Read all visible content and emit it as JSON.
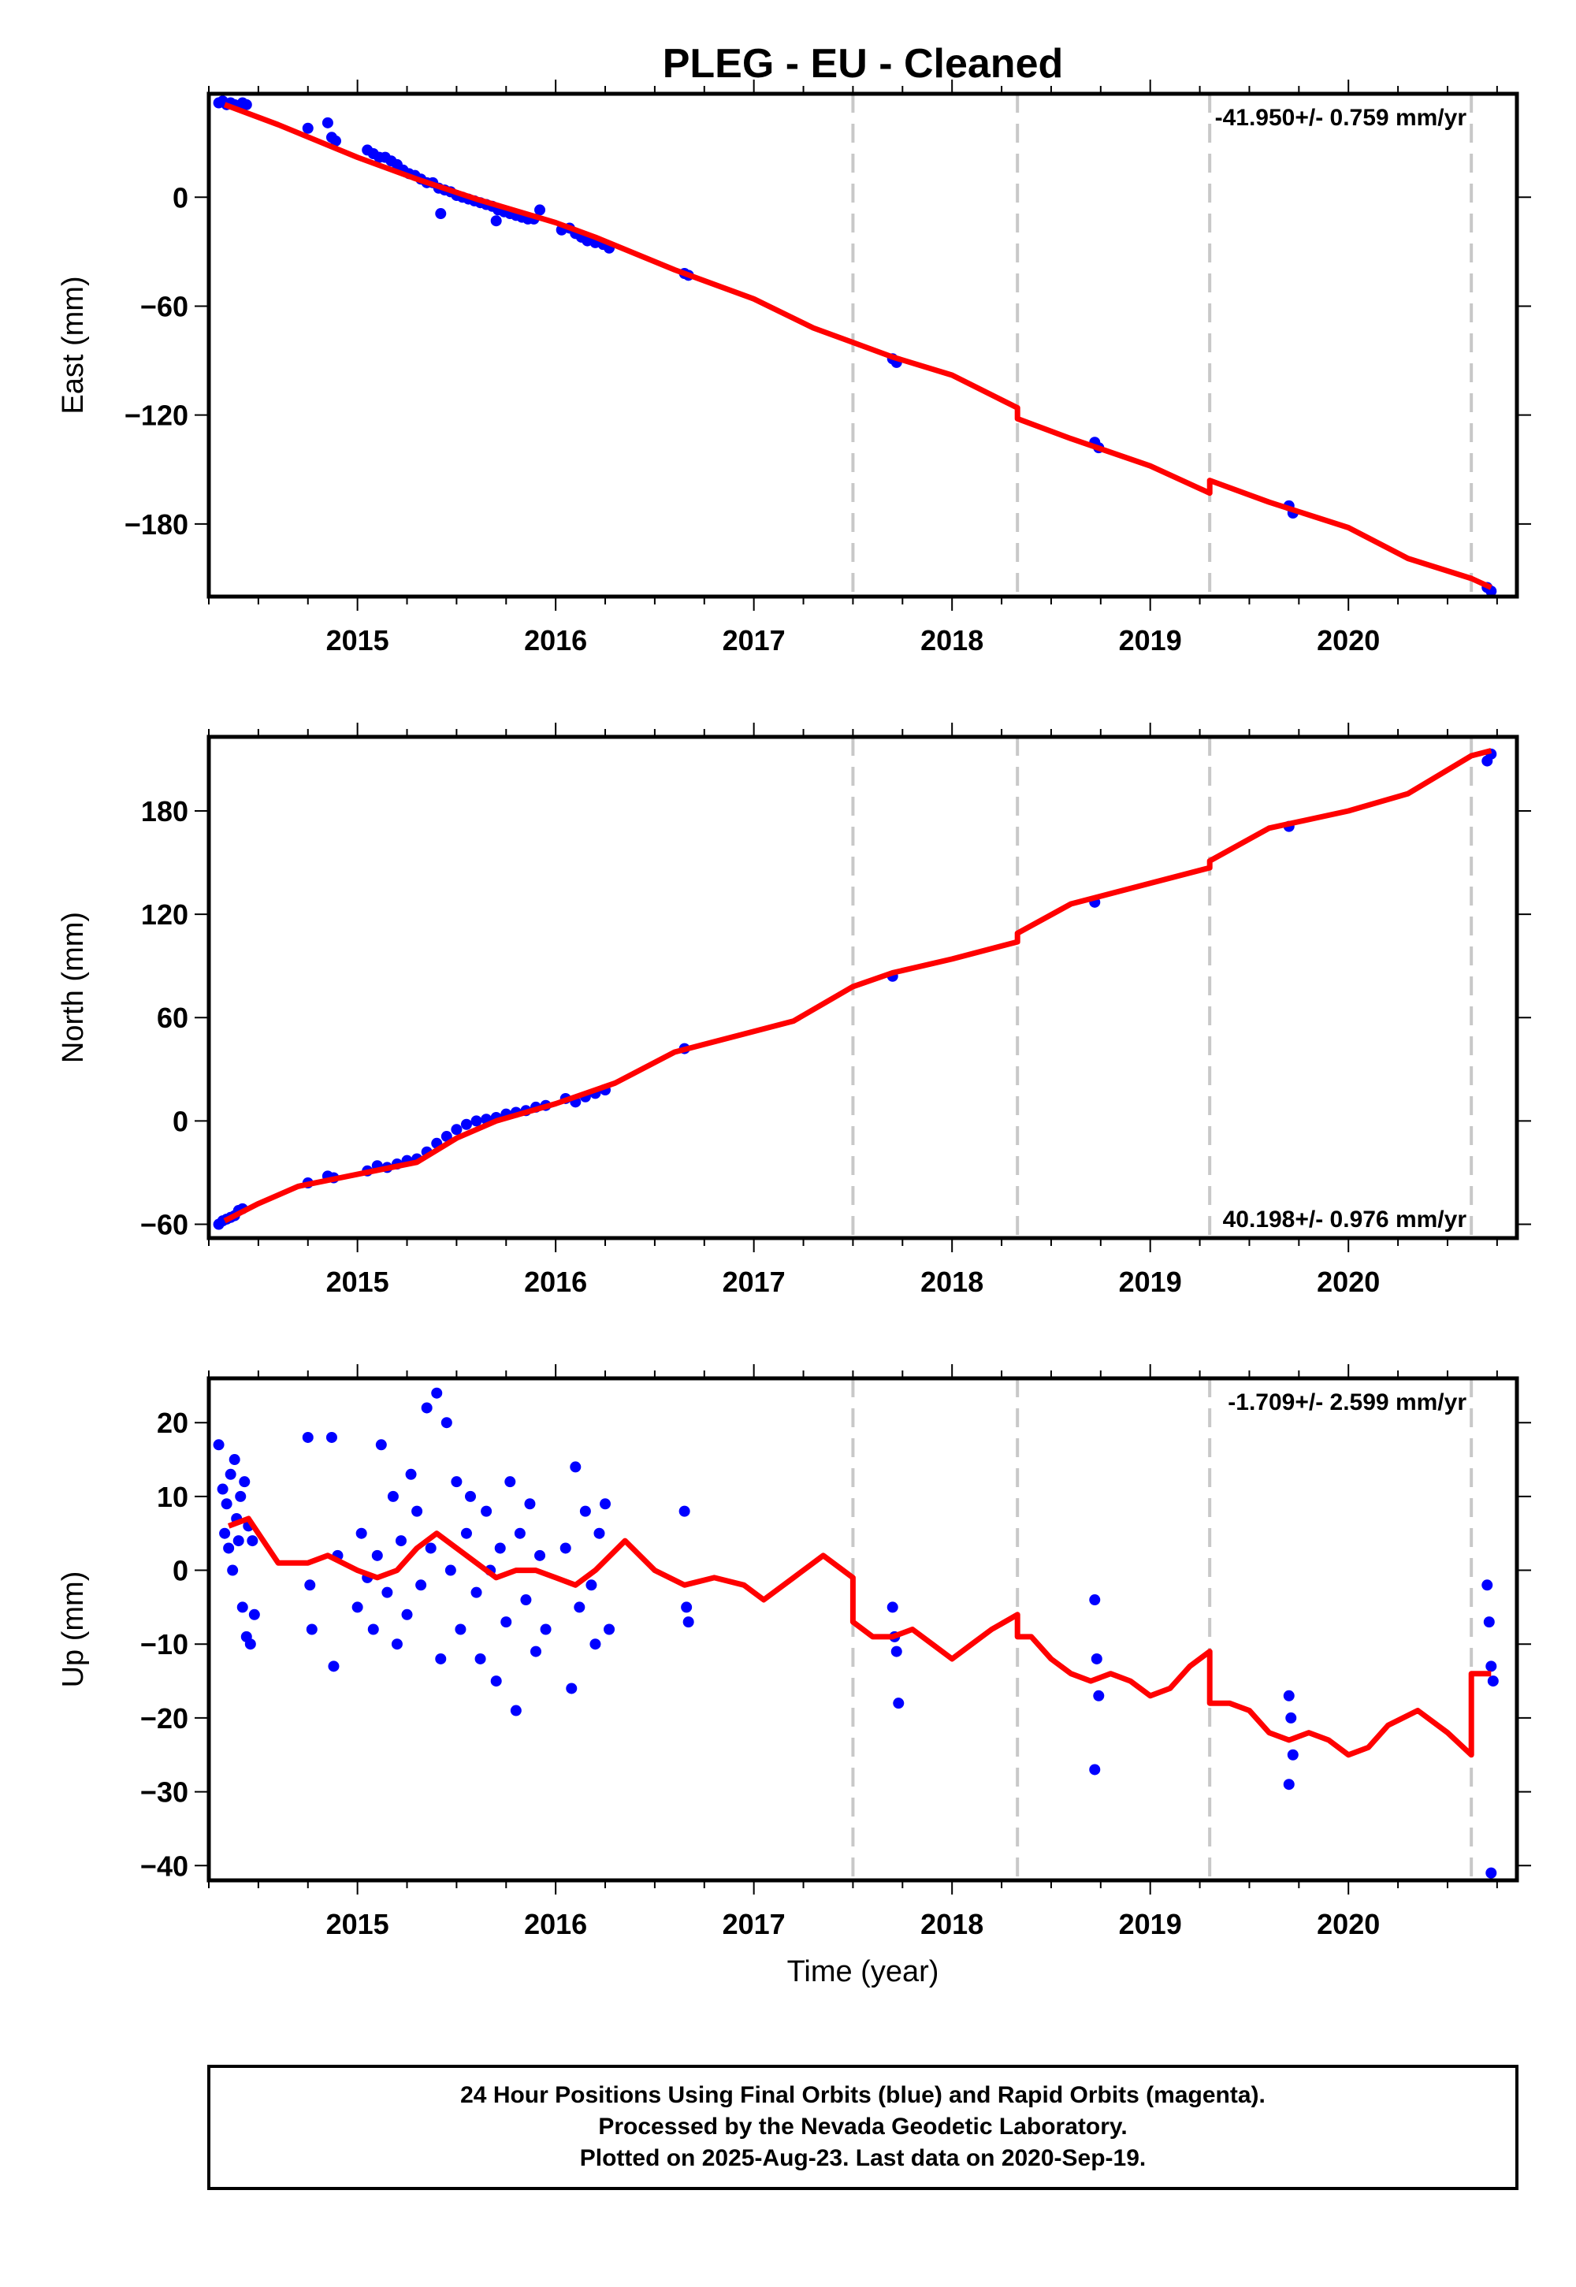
{
  "title": "PLEG  - EU - Cleaned",
  "xlabel": "Time (year)",
  "colors": {
    "points": "#0000ff",
    "fit": "#ff0000",
    "offsets": "#c8c8c8",
    "frame": "#000000"
  },
  "footer": {
    "line1": "24 Hour Positions Using Final Orbits (blue) and Rapid Orbits (magenta).",
    "line2": "Processed by the Nevada Geodetic Laboratory.",
    "line3": "Plotted on 2025-Aug-23. Last data on 2020-Sep-19."
  },
  "chart_data": [
    {
      "type": "scatter",
      "component": "East",
      "ylabel": "East (mm)",
      "rate_label": "-41.950+/- 0.759 mm/yr",
      "rate_position": "top-right",
      "xlim": [
        2014.25,
        2020.85
      ],
      "ylim": [
        -220,
        57
      ],
      "xticks": [
        2015,
        2016,
        2017,
        2018,
        2019,
        2020
      ],
      "yticks": [
        0,
        -60,
        -120,
        -180
      ],
      "offsets": [
        2017.5,
        2018.33,
        2019.3,
        2020.62
      ],
      "fit_line": [
        [
          2014.33,
          51
        ],
        [
          2014.6,
          40
        ],
        [
          2015.0,
          22
        ],
        [
          2015.3,
          10
        ],
        [
          2015.6,
          -1
        ],
        [
          2016.0,
          -14
        ],
        [
          2016.2,
          -22
        ],
        [
          2016.6,
          -40
        ],
        [
          2017.0,
          -56
        ],
        [
          2017.3,
          -72
        ],
        [
          2017.5,
          -80
        ],
        [
          2017.7,
          -88
        ],
        [
          2018.0,
          -98
        ],
        [
          2018.33,
          -116
        ],
        [
          2018.33,
          -122
        ],
        [
          2018.6,
          -133
        ],
        [
          2019.0,
          -148
        ],
        [
          2019.3,
          -163
        ],
        [
          2019.3,
          -156
        ],
        [
          2019.6,
          -168
        ],
        [
          2020.0,
          -182
        ],
        [
          2020.3,
          -199
        ],
        [
          2020.62,
          -210
        ],
        [
          2020.72,
          -215
        ]
      ],
      "points": [
        [
          2014.3,
          52
        ],
        [
          2014.32,
          53
        ],
        [
          2014.34,
          51
        ],
        [
          2014.36,
          52
        ],
        [
          2014.38,
          51
        ],
        [
          2014.4,
          50
        ],
        [
          2014.42,
          52
        ],
        [
          2014.44,
          51
        ],
        [
          2014.75,
          38
        ],
        [
          2014.85,
          41
        ],
        [
          2014.87,
          33
        ],
        [
          2014.89,
          31
        ],
        [
          2015.05,
          26
        ],
        [
          2015.08,
          24
        ],
        [
          2015.11,
          22
        ],
        [
          2015.14,
          22
        ],
        [
          2015.17,
          20
        ],
        [
          2015.2,
          18
        ],
        [
          2015.23,
          15
        ],
        [
          2015.26,
          13
        ],
        [
          2015.29,
          12
        ],
        [
          2015.32,
          10
        ],
        [
          2015.35,
          8
        ],
        [
          2015.38,
          8
        ],
        [
          2015.41,
          5
        ],
        [
          2015.44,
          4
        ],
        [
          2015.47,
          3
        ],
        [
          2015.5,
          1
        ],
        [
          2015.53,
          0
        ],
        [
          2015.56,
          -1
        ],
        [
          2015.59,
          -2
        ],
        [
          2015.62,
          -3
        ],
        [
          2015.65,
          -4
        ],
        [
          2015.68,
          -5
        ],
        [
          2015.71,
          -7
        ],
        [
          2015.74,
          -8
        ],
        [
          2015.77,
          -9
        ],
        [
          2015.8,
          -10
        ],
        [
          2015.83,
          -11
        ],
        [
          2015.86,
          -12
        ],
        [
          2015.89,
          -12
        ],
        [
          2015.92,
          -7
        ],
        [
          2015.42,
          -9
        ],
        [
          2015.7,
          -13
        ],
        [
          2016.03,
          -18
        ],
        [
          2016.07,
          -17
        ],
        [
          2016.1,
          -20
        ],
        [
          2016.13,
          -22
        ],
        [
          2016.16,
          -24
        ],
        [
          2016.2,
          -25
        ],
        [
          2016.24,
          -26
        ],
        [
          2016.27,
          -28
        ],
        [
          2016.65,
          -42
        ],
        [
          2016.67,
          -43
        ],
        [
          2017.7,
          -89
        ],
        [
          2017.72,
          -91
        ],
        [
          2018.72,
          -135
        ],
        [
          2018.74,
          -138
        ],
        [
          2019.7,
          -170
        ],
        [
          2019.72,
          -174
        ],
        [
          2020.7,
          -215
        ],
        [
          2020.72,
          -217
        ]
      ]
    },
    {
      "type": "scatter",
      "component": "North",
      "ylabel": "North (mm)",
      "rate_label": "40.198+/- 0.976 mm/yr",
      "rate_position": "bottom-right",
      "xlim": [
        2014.25,
        2020.85
      ],
      "ylim": [
        -68,
        223
      ],
      "xticks": [
        2015,
        2016,
        2017,
        2018,
        2019,
        2020
      ],
      "yticks": [
        -60,
        0,
        60,
        120,
        180
      ],
      "offsets": [
        2017.5,
        2018.33,
        2019.3,
        2020.62
      ],
      "fit_line": [
        [
          2014.33,
          -58
        ],
        [
          2014.5,
          -48
        ],
        [
          2014.7,
          -38
        ],
        [
          2015.0,
          -31
        ],
        [
          2015.3,
          -24
        ],
        [
          2015.5,
          -10
        ],
        [
          2015.7,
          0
        ],
        [
          2016.0,
          10
        ],
        [
          2016.3,
          22
        ],
        [
          2016.6,
          40
        ],
        [
          2017.0,
          52
        ],
        [
          2017.2,
          58
        ],
        [
          2017.5,
          78
        ],
        [
          2017.7,
          86
        ],
        [
          2018.0,
          94
        ],
        [
          2018.33,
          104
        ],
        [
          2018.33,
          109
        ],
        [
          2018.6,
          126
        ],
        [
          2019.0,
          138
        ],
        [
          2019.3,
          147
        ],
        [
          2019.3,
          151
        ],
        [
          2019.6,
          170
        ],
        [
          2020.0,
          180
        ],
        [
          2020.3,
          190
        ],
        [
          2020.62,
          212
        ],
        [
          2020.72,
          215
        ]
      ],
      "points": [
        [
          2014.3,
          -60
        ],
        [
          2014.32,
          -58
        ],
        [
          2014.34,
          -57
        ],
        [
          2014.36,
          -56
        ],
        [
          2014.38,
          -55
        ],
        [
          2014.4,
          -52
        ],
        [
          2014.42,
          -51
        ],
        [
          2014.75,
          -36
        ],
        [
          2014.85,
          -32
        ],
        [
          2014.88,
          -33
        ],
        [
          2015.05,
          -29
        ],
        [
          2015.1,
          -26
        ],
        [
          2015.15,
          -27
        ],
        [
          2015.2,
          -25
        ],
        [
          2015.25,
          -23
        ],
        [
          2015.3,
          -22
        ],
        [
          2015.35,
          -18
        ],
        [
          2015.4,
          -13
        ],
        [
          2015.45,
          -9
        ],
        [
          2015.5,
          -5
        ],
        [
          2015.55,
          -2
        ],
        [
          2015.6,
          0
        ],
        [
          2015.65,
          1
        ],
        [
          2015.7,
          2
        ],
        [
          2015.75,
          4
        ],
        [
          2015.8,
          5
        ],
        [
          2015.85,
          6
        ],
        [
          2015.9,
          8
        ],
        [
          2015.95,
          9
        ],
        [
          2016.05,
          13
        ],
        [
          2016.1,
          11
        ],
        [
          2016.15,
          14
        ],
        [
          2016.2,
          16
        ],
        [
          2016.25,
          18
        ],
        [
          2016.65,
          42
        ],
        [
          2017.7,
          84
        ],
        [
          2018.72,
          127
        ],
        [
          2019.7,
          171
        ],
        [
          2020.7,
          209
        ],
        [
          2020.72,
          213
        ]
      ]
    },
    {
      "type": "scatter",
      "component": "Up",
      "ylabel": "Up (mm)",
      "rate_label": "-1.709+/- 2.599 mm/yr",
      "rate_position": "top-right",
      "xlim": [
        2014.25,
        2020.85
      ],
      "ylim": [
        -42,
        26
      ],
      "xticks": [
        2015,
        2016,
        2017,
        2018,
        2019,
        2020
      ],
      "yticks": [
        20,
        10,
        0,
        -10,
        -20,
        -30,
        -40
      ],
      "offsets": [
        2017.5,
        2018.33,
        2019.3,
        2020.62
      ],
      "fit_line": [
        [
          2014.35,
          6
        ],
        [
          2014.45,
          7
        ],
        [
          2014.6,
          1
        ],
        [
          2014.75,
          1
        ],
        [
          2014.85,
          2
        ],
        [
          2015.0,
          0
        ],
        [
          2015.1,
          -1
        ],
        [
          2015.2,
          0
        ],
        [
          2015.3,
          3
        ],
        [
          2015.4,
          5
        ],
        [
          2015.55,
          2
        ],
        [
          2015.7,
          -1
        ],
        [
          2015.8,
          0
        ],
        [
          2015.9,
          0
        ],
        [
          2016.0,
          -1
        ],
        [
          2016.1,
          -2
        ],
        [
          2016.2,
          0
        ],
        [
          2016.35,
          4
        ],
        [
          2016.5,
          0
        ],
        [
          2016.65,
          -2
        ],
        [
          2016.8,
          -1
        ],
        [
          2016.95,
          -2
        ],
        [
          2017.05,
          -4
        ],
        [
          2017.2,
          -1
        ],
        [
          2017.35,
          2
        ],
        [
          2017.5,
          -1
        ],
        [
          2017.5,
          -7
        ],
        [
          2017.6,
          -9
        ],
        [
          2017.7,
          -9
        ],
        [
          2017.8,
          -8
        ],
        [
          2017.9,
          -10
        ],
        [
          2018.0,
          -12
        ],
        [
          2018.1,
          -10
        ],
        [
          2018.2,
          -8
        ],
        [
          2018.33,
          -6
        ],
        [
          2018.33,
          -9
        ],
        [
          2018.4,
          -9
        ],
        [
          2018.5,
          -12
        ],
        [
          2018.6,
          -14
        ],
        [
          2018.7,
          -15
        ],
        [
          2018.8,
          -14
        ],
        [
          2018.9,
          -15
        ],
        [
          2019.0,
          -17
        ],
        [
          2019.1,
          -16
        ],
        [
          2019.2,
          -13
        ],
        [
          2019.3,
          -11
        ],
        [
          2019.3,
          -18
        ],
        [
          2019.4,
          -18
        ],
        [
          2019.5,
          -19
        ],
        [
          2019.6,
          -22
        ],
        [
          2019.7,
          -23
        ],
        [
          2019.8,
          -22
        ],
        [
          2019.9,
          -23
        ],
        [
          2020.0,
          -25
        ],
        [
          2020.1,
          -24
        ],
        [
          2020.2,
          -21
        ],
        [
          2020.35,
          -19
        ],
        [
          2020.5,
          -22
        ],
        [
          2020.62,
          -25
        ],
        [
          2020.62,
          -14
        ],
        [
          2020.72,
          -14
        ]
      ],
      "points": [
        [
          2014.3,
          17
        ],
        [
          2014.32,
          11
        ],
        [
          2014.33,
          5
        ],
        [
          2014.34,
          9
        ],
        [
          2014.35,
          3
        ],
        [
          2014.36,
          13
        ],
        [
          2014.37,
          0
        ],
        [
          2014.38,
          15
        ],
        [
          2014.39,
          7
        ],
        [
          2014.4,
          4
        ],
        [
          2014.41,
          10
        ],
        [
          2014.42,
          -5
        ],
        [
          2014.43,
          12
        ],
        [
          2014.44,
          -9
        ],
        [
          2014.45,
          6
        ],
        [
          2014.46,
          -10
        ],
        [
          2014.47,
          4
        ],
        [
          2014.48,
          -6
        ],
        [
          2014.75,
          18
        ],
        [
          2014.76,
          -2
        ],
        [
          2014.77,
          -8
        ],
        [
          2014.87,
          18
        ],
        [
          2014.88,
          -13
        ],
        [
          2014.9,
          2
        ],
        [
          2015.0,
          -5
        ],
        [
          2015.02,
          5
        ],
        [
          2015.05,
          -1
        ],
        [
          2015.08,
          -8
        ],
        [
          2015.1,
          2
        ],
        [
          2015.12,
          17
        ],
        [
          2015.15,
          -3
        ],
        [
          2015.18,
          10
        ],
        [
          2015.2,
          -10
        ],
        [
          2015.22,
          4
        ],
        [
          2015.25,
          -6
        ],
        [
          2015.27,
          13
        ],
        [
          2015.3,
          8
        ],
        [
          2015.32,
          -2
        ],
        [
          2015.35,
          22
        ],
        [
          2015.37,
          3
        ],
        [
          2015.4,
          24
        ],
        [
          2015.42,
          -12
        ],
        [
          2015.45,
          20
        ],
        [
          2015.47,
          0
        ],
        [
          2015.5,
          12
        ],
        [
          2015.52,
          -8
        ],
        [
          2015.55,
          5
        ],
        [
          2015.57,
          10
        ],
        [
          2015.6,
          -3
        ],
        [
          2015.62,
          -12
        ],
        [
          2015.65,
          8
        ],
        [
          2015.67,
          0
        ],
        [
          2015.7,
          -15
        ],
        [
          2015.72,
          3
        ],
        [
          2015.75,
          -7
        ],
        [
          2015.77,
          12
        ],
        [
          2015.8,
          -19
        ],
        [
          2015.82,
          5
        ],
        [
          2015.85,
          -4
        ],
        [
          2015.87,
          9
        ],
        [
          2015.9,
          -11
        ],
        [
          2015.92,
          2
        ],
        [
          2015.95,
          -8
        ],
        [
          2016.05,
          3
        ],
        [
          2016.08,
          -16
        ],
        [
          2016.1,
          14
        ],
        [
          2016.12,
          -5
        ],
        [
          2016.15,
          8
        ],
        [
          2016.18,
          -2
        ],
        [
          2016.2,
          -10
        ],
        [
          2016.22,
          5
        ],
        [
          2016.25,
          9
        ],
        [
          2016.27,
          -8
        ],
        [
          2016.65,
          8
        ],
        [
          2016.66,
          -5
        ],
        [
          2016.67,
          -7
        ],
        [
          2017.7,
          -5
        ],
        [
          2017.71,
          -9
        ],
        [
          2017.72,
          -11
        ],
        [
          2017.73,
          -18
        ],
        [
          2018.72,
          -4
        ],
        [
          2018.73,
          -12
        ],
        [
          2018.74,
          -17
        ],
        [
          2018.72,
          -27
        ],
        [
          2019.7,
          -17
        ],
        [
          2019.71,
          -20
        ],
        [
          2019.72,
          -25
        ],
        [
          2019.7,
          -29
        ],
        [
          2020.7,
          -2
        ],
        [
          2020.71,
          -7
        ],
        [
          2020.72,
          -13
        ],
        [
          2020.73,
          -15
        ],
        [
          2020.72,
          -41
        ]
      ]
    }
  ]
}
